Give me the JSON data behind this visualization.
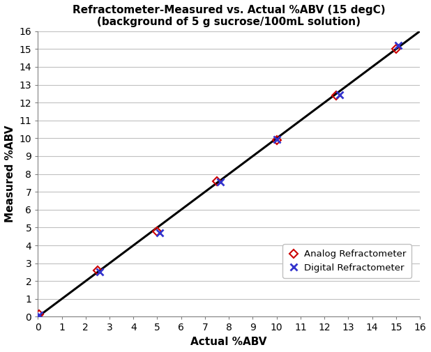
{
  "title_line1": "Refractometer-Measured vs. Actual %ABV (15 degC)",
  "title_line2": "(background of 5 g sucrose/100mL solution)",
  "xlabel": "Actual %ABV",
  "ylabel": "Measured %ABV",
  "xlim": [
    0,
    16
  ],
  "ylim": [
    0,
    16
  ],
  "xticks": [
    0,
    1,
    2,
    3,
    4,
    5,
    6,
    7,
    8,
    9,
    10,
    11,
    12,
    13,
    14,
    15,
    16
  ],
  "yticks": [
    0,
    1,
    2,
    3,
    4,
    5,
    6,
    7,
    8,
    9,
    10,
    11,
    12,
    13,
    14,
    15,
    16
  ],
  "ref_line_x": [
    -1,
    17
  ],
  "ref_line_y": [
    -1,
    17
  ],
  "analog_x": [
    0.05,
    2.5,
    5.0,
    7.5,
    10.0,
    12.5,
    15.0
  ],
  "analog_y": [
    0.15,
    2.6,
    4.8,
    7.6,
    9.9,
    12.4,
    15.0
  ],
  "digital_x": [
    0.05,
    2.6,
    5.1,
    7.65,
    10.0,
    12.65,
    15.1
  ],
  "digital_y": [
    0.1,
    2.5,
    4.7,
    7.55,
    9.95,
    12.45,
    15.2
  ],
  "analog_color": "#cc0000",
  "digital_color": "#3333cc",
  "line_color": "#000000",
  "background_color": "#ffffff",
  "plot_bg_color": "#ffffff",
  "grid_color": "#c0c0c0",
  "spine_color": "#808080",
  "title_fontsize": 11,
  "axis_label_fontsize": 11,
  "tick_fontsize": 10,
  "legend_analog_label": "Analog Refractometer",
  "legend_digital_label": "Digital Refractometer"
}
